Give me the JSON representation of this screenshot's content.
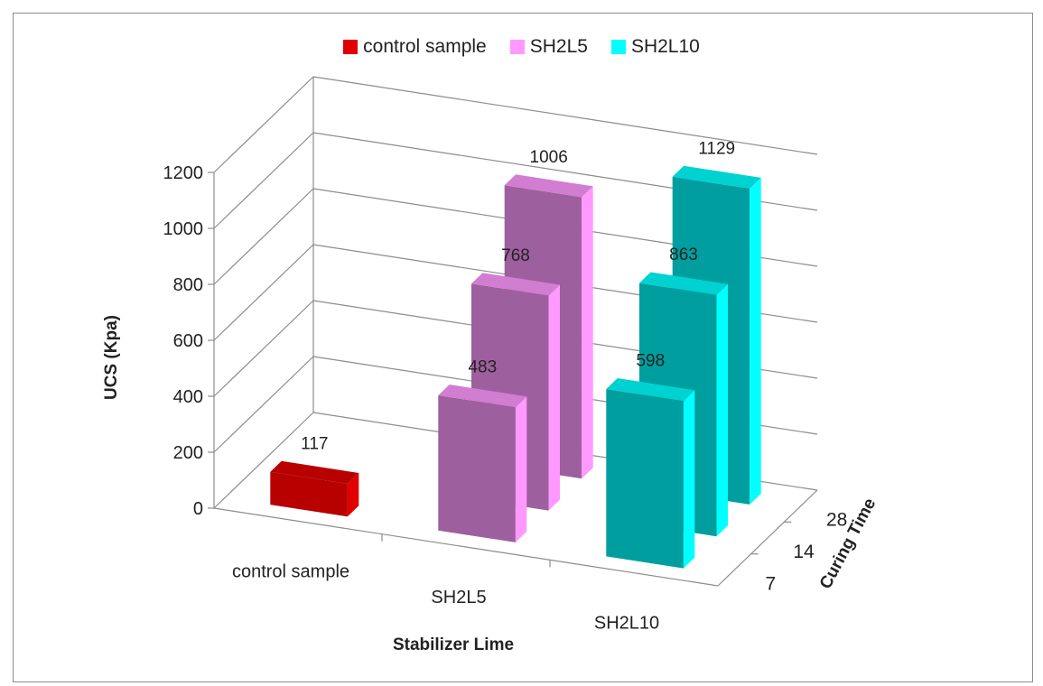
{
  "chart_data": {
    "type": "bar",
    "subtype": "3d-clustered-column",
    "categories": [
      "control sample",
      "SH2L5",
      "SH2L10"
    ],
    "depth_categories": [
      "7",
      "14",
      "28"
    ],
    "series": [
      {
        "name": "control sample",
        "color": "#e00000",
        "values": [
          [
            117
          ],
          [],
          []
        ]
      }
    ],
    "bars": [
      {
        "category": "control sample",
        "curing": "7",
        "value": 117,
        "series": "control sample"
      },
      {
        "category": "SH2L5",
        "curing": "7",
        "value": 483,
        "series": "SH2L5"
      },
      {
        "category": "SH2L5",
        "curing": "14",
        "value": 768,
        "series": "SH2L5"
      },
      {
        "category": "SH2L5",
        "curing": "28",
        "value": 1006,
        "series": "SH2L5"
      },
      {
        "category": "SH2L10",
        "curing": "7",
        "value": 598,
        "series": "SH2L10"
      },
      {
        "category": "SH2L10",
        "curing": "14",
        "value": 863,
        "series": "SH2L10"
      },
      {
        "category": "SH2L10",
        "curing": "28",
        "value": 1129,
        "series": "SH2L10"
      }
    ],
    "legend": [
      {
        "name": "control sample",
        "color": "#e00000"
      },
      {
        "name": "SH2L5",
        "color": "#ff99ff"
      },
      {
        "name": "SH2L10",
        "color": "#00ffff"
      }
    ],
    "legend_position": "top",
    "xlabel": "Stabilizer Lime",
    "ylabel": "UCS (Kpa)",
    "zlabel": "Curing Time",
    "ylim": [
      0,
      1200
    ],
    "yticks": [
      "0",
      "200",
      "400",
      "600",
      "800",
      "1000",
      "1200"
    ],
    "grid": true
  }
}
